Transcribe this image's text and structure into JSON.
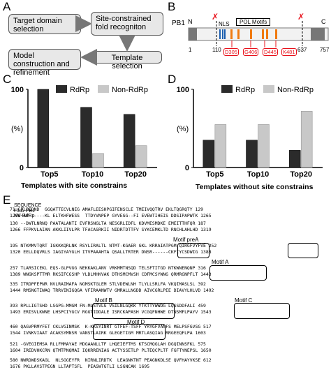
{
  "panel_labels": {
    "a": "A",
    "b": "B",
    "c": "C",
    "d": "D",
    "e": "E"
  },
  "panel_a": {
    "boxes": [
      "Target domain selection",
      "Site-constrained fold recogniton",
      "Template selection",
      "Model construction and refinement"
    ]
  },
  "panel_b": {
    "protein": "PB1",
    "n_label": "N",
    "c_label": "C",
    "nls": "NLS",
    "pol_motifs": "POL Motifs",
    "positions": [
      "1",
      "110",
      "637",
      "757"
    ],
    "residues": [
      "D305",
      "G406",
      "D445",
      "K481"
    ],
    "colors": {
      "red": "#e8101a",
      "orange": "#f07a10",
      "blue": "#1c5fb0",
      "gray": "#777777",
      "body": "#f2f2f2"
    }
  },
  "panel_c": {
    "caption": "Templates with site constrains",
    "ylabel": "(%)"
  },
  "panel_d": {
    "caption": "Templates without site constrains",
    "ylabel": "(%)"
  },
  "chart_data": [
    {
      "type": "bar",
      "categories": [
        "Top5",
        "Top10",
        "Top20"
      ],
      "series": [
        {
          "name": "RdRp",
          "values": [
            100,
            77,
            68
          ],
          "color": "#2b2b2b"
        },
        {
          "name": "Non-RdRp",
          "values": [
            0,
            18,
            28
          ],
          "color": "#c8c8c8"
        }
      ],
      "ylim": [
        0,
        100
      ],
      "yticks": [
        "0",
        "100"
      ],
      "xlabel": "Templates with site constrains",
      "ylabel": "(%)"
    },
    {
      "type": "bar",
      "categories": [
        "Top5",
        "Top10",
        "Top20"
      ],
      "series": [
        {
          "name": "RdRp",
          "values": [
            35,
            35,
            22
          ],
          "color": "#2b2b2b"
        },
        {
          "name": "Non-RdRp",
          "values": [
            55,
            55,
            72
          ],
          "color": "#c8c8c8"
        }
      ],
      "ylim": [
        0,
        100
      ],
      "yticks": [
        "0",
        "100"
      ],
      "xlabel": "Templates without site constrains",
      "ylabel": "(%)"
    }
  ],
  "panel_e": {
    "title": "SEQUENCE",
    "names": [
      "FluA-PB1",
      "NV-RdRp"
    ],
    "rows": [
      {
        "a": "71 GPLPEDND  GGQATTECVLNEG AMAFLEESHPGIFENSCLE TMEIVQQTRV EKLTQGRQTY 129",
        "b": "1208 AP------KL ELTKHFWESS  TTDYVNPEP GYVEGG--FI EVEWTIHEIS DDSIPAPWTK 1265"
      },
      {
        "a": "130 --DWTLNRNQ PAATALANTI EVFRSNGLTA NESGRLIDFL KDVMESMDKE EMEITTHFQR 187",
        "b": "1266 FFPKVLAIAN AKKLIIVLPR TFACASRKII NIDRTDTTFV SYKCEMKLTD RNCHLAHLHD 1319"
      },
      {
        "a": "195 NTKMMVTQRT IGKKKQRLNK RSYLIRALTL NTMT-KGAER GKL KRRAIATPGM QIRGFVYFVE 252",
        "b": "1320 EELLDQVRLS IAGIYAYGLH ITVPAAAHTA QSALLTRTER DNSR------CKFIYCSDWIG 1388"
      },
      {
        "a": "257 TLARSICEKL EQS-GLPVGG NEKKAKLANV VRKMMTNSQD TELSFTITGD NTKWNENQNP 316",
        "b": "1389 WNGKSPTTMR RKSIFCGSHP YLDLMHKVAK DTHSMCMVSH CDFMCSYWNG QRMRGNPFLT 1443"
      },
      {
        "a": "335 ITRDPFEPNR NVLRAIMAFA NGMSKTGLEM STLVDEWLNH TLYLLSRLFA VKQIMASLSL 392",
        "b": "1444 RMSNGTIWAQ TRRVINIGQGA VFIRAANWTV GMRALLNGDD AIVCGRLPEE DIAVYLHLVD 1492"
      },
      {
        "a": "393 RPLLIGTSHD LSGPG-MMGM FN-MLSTVLG VSILNLGQKK YTKTTYWWDG LQSSDDFALI 459",
        "b": "1493 ERISVLKWNE LHSPCIYGCV RGGTIDDALE ISRCKAPASH VCGQFNHWE DTNSMFLPAYV 1543"
      },
      {
        "a": "460 QAGVPRMYFET CKLVGINMSK  K-KKSYINRT GTFEF-TSFF YRYGFVANFS MELPSFGVSG 517",
        "b": "1544 IVNKVIAAT ACAKSYMNSR VANSTLAIRK GLEGETIGM MRTLASQIAG RRGEEQFLPA 1603"
      },
      {
        "a": "521 -GVEGIEMSA RLLFMMAYAE MDGAANLLTF LHQEIEFTMS KTSCMQGLAH DGQINNSFKL 575",
        "b": "1604 IREDVHKCRN QTMTPNQMAI IQKRRENIAG ACTYSSETLP PLTEQCPLTF FGFTYNEPSL 1650"
      },
      {
        "a": "580 NWRDWDSKAGL  NLSGGEYFR  NIRNLIRDTK  LEAGNKTNT PEAGNKDLSE QVFHAYVKSE 612",
        "b": "1676 PKLLAVSTPEGN LLTAPTSFL  PEASWTGTLI LSGNCAK 1695"
      }
    ],
    "motifs": [
      "Motif preA",
      "Motif A",
      "Motif B",
      "Motif C",
      "Motif D"
    ]
  }
}
